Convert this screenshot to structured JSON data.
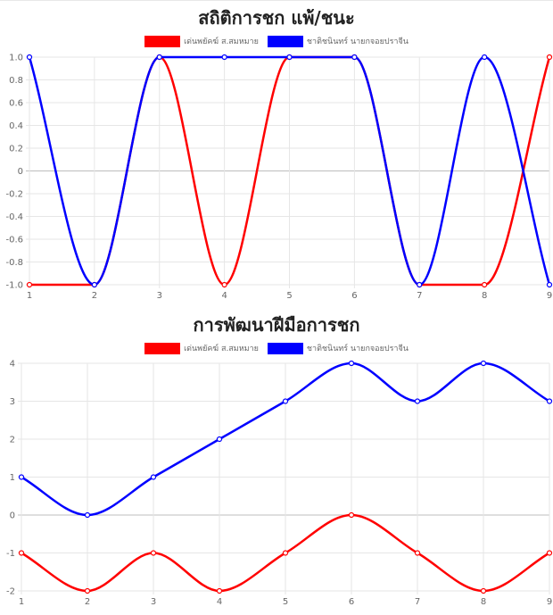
{
  "colors": {
    "red": "#ff0000",
    "blue": "#0000ff",
    "grid": "#e6e6e6",
    "zero": "#bdbdbd"
  },
  "chart_data": [
    {
      "type": "line",
      "title": "สถิติการชก แพ้/ชนะ",
      "categories": [
        "1",
        "2",
        "3",
        "4",
        "5",
        "6",
        "7",
        "8",
        "9"
      ],
      "ylim": [
        -1,
        1
      ],
      "yticks": [
        "1.0",
        "0.8",
        "0.6",
        "0.4",
        "0.2",
        "0",
        "-0.2",
        "-0.4",
        "-0.6",
        "-0.8",
        "-1.0"
      ],
      "ytick_values": [
        1.0,
        0.8,
        0.6,
        0.4,
        0.2,
        0,
        -0.2,
        -0.4,
        -0.6,
        -0.8,
        -1.0
      ],
      "grid": true,
      "legend": "top",
      "series": [
        {
          "name": "เด่นพยัคฆ์ ส.สมหมาย",
          "color": "#ff0000",
          "values": [
            -1,
            -1,
            1,
            -1,
            1,
            1,
            -1,
            -1,
            1
          ]
        },
        {
          "name": "ชาติชนินทร์ นายกจอยปราจีน",
          "color": "#0000ff",
          "values": [
            1,
            -1,
            1,
            1,
            1,
            1,
            -1,
            1,
            -1
          ]
        }
      ]
    },
    {
      "type": "line",
      "title": "การพัฒนาฝีมือการชก",
      "categories": [
        "1",
        "2",
        "3",
        "4",
        "5",
        "6",
        "7",
        "8",
        "9"
      ],
      "ylim": [
        -2,
        4
      ],
      "yticks": [
        "4",
        "3",
        "2",
        "1",
        "0",
        "-1",
        "-2"
      ],
      "ytick_values": [
        4,
        3,
        2,
        1,
        0,
        -1,
        -2
      ],
      "grid": true,
      "legend": "top",
      "series": [
        {
          "name": "เด่นพยัคฆ์ ส.สมหมาย",
          "color": "#ff0000",
          "values": [
            -1,
            -2,
            -1,
            -2,
            -1,
            0,
            -1,
            -2,
            -1
          ]
        },
        {
          "name": "ชาติชนินทร์ นายกจอยปราจีน",
          "color": "#0000ff",
          "values": [
            1,
            0,
            1,
            2,
            3,
            4,
            3,
            4,
            3
          ]
        }
      ]
    }
  ]
}
